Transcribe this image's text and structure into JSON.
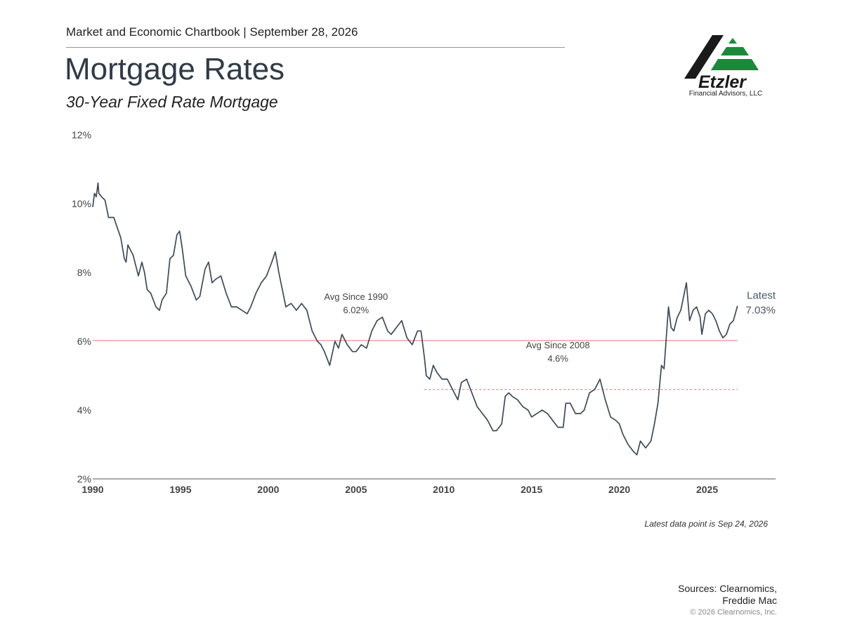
{
  "header": {
    "chartbook": "Market and Economic Chartbook | September 28, 2026"
  },
  "logo": {
    "name": "Etzler",
    "tagline": "Financial Advisors, LLC",
    "colors": {
      "dark": "#1a1a1a",
      "green": "#1a8a3a"
    }
  },
  "footer": {
    "latest_note": "Latest data point is Sep 24, 2026",
    "sources_line1": "Sources: Clearnomics,",
    "sources_line2": "Freddie Mac",
    "copyright": "© 2026 Clearnomics, Inc."
  },
  "chart_data": {
    "type": "line",
    "title": "Mortgage Rates",
    "subtitle": "30-Year Fixed Rate Mortgage",
    "xlim": [
      1990,
      2028.9
    ],
    "ylim": [
      2,
      12
    ],
    "y_ticks": [
      2,
      4,
      6,
      8,
      10,
      12
    ],
    "y_tick_labels": [
      "2%",
      "4%",
      "6%",
      "8%",
      "10%",
      "12%"
    ],
    "x_ticks": [
      1990,
      1995,
      2000,
      2005,
      2010,
      2015,
      2020,
      2025
    ],
    "x_tick_labels": [
      "1990",
      "1995",
      "2000",
      "2005",
      "2010",
      "2015",
      "2020",
      "2025"
    ],
    "grid": false,
    "colors": {
      "line": "#3d4a57",
      "avg": "#d9908f",
      "axis": "#555555",
      "text": "#444444"
    },
    "series": [
      {
        "x": [
          1990.0,
          1990.1,
          1990.2,
          1990.3,
          1990.35,
          1990.5,
          1990.7,
          1990.9,
          1991.0,
          1991.2,
          1991.4,
          1991.6,
          1991.8,
          1991.9,
          1992.0,
          1992.3,
          1992.6,
          1992.8,
          1992.95,
          1993.1,
          1993.3,
          1993.6,
          1993.8,
          1993.95,
          1994.2,
          1994.4,
          1994.6,
          1994.8,
          1994.95,
          1995.1,
          1995.3,
          1995.6,
          1995.9,
          1996.1,
          1996.4,
          1996.6,
          1996.8,
          1997.0,
          1997.3,
          1997.6,
          1997.9,
          1998.2,
          1998.5,
          1998.8,
          1999.0,
          1999.3,
          1999.6,
          1999.9,
          2000.2,
          2000.4,
          2000.6,
          2000.8,
          2001.0,
          2001.3,
          2001.6,
          2001.9,
          2002.2,
          2002.5,
          2002.8,
          2003.0,
          2003.2,
          2003.5,
          2003.8,
          2004.0,
          2004.2,
          2004.5,
          2004.8,
          2005.0,
          2005.3,
          2005.6,
          2005.9,
          2006.2,
          2006.5,
          2006.8,
          2007.0,
          2007.3,
          2007.6,
          2007.9,
          2008.2,
          2008.5,
          2008.7,
          2008.9,
          2009.0,
          2009.2,
          2009.4,
          2009.6,
          2009.9,
          2010.2,
          2010.5,
          2010.8,
          2011.0,
          2011.3,
          2011.6,
          2011.9,
          2012.2,
          2012.5,
          2012.8,
          2013.0,
          2013.3,
          2013.5,
          2013.7,
          2013.9,
          2014.2,
          2014.5,
          2014.8,
          2015.0,
          2015.3,
          2015.6,
          2015.9,
          2016.2,
          2016.5,
          2016.8,
          2016.95,
          2017.2,
          2017.5,
          2017.8,
          2018.0,
          2018.3,
          2018.6,
          2018.9,
          2019.2,
          2019.5,
          2019.8,
          2020.0,
          2020.2,
          2020.5,
          2020.8,
          2021.0,
          2021.2,
          2021.5,
          2021.8,
          2022.0,
          2022.2,
          2022.4,
          2022.55,
          2022.7,
          2022.8,
          2022.95,
          2023.1,
          2023.3,
          2023.5,
          2023.7,
          2023.82,
          2024.0,
          2024.2,
          2024.4,
          2024.6,
          2024.7,
          2024.9,
          2025.1,
          2025.3,
          2025.5,
          2025.7,
          2025.9,
          2026.1,
          2026.3,
          2026.5,
          2026.73
        ],
        "values": [
          9.9,
          10.3,
          10.2,
          10.6,
          10.3,
          10.2,
          10.1,
          9.6,
          9.6,
          9.6,
          9.3,
          9.0,
          8.4,
          8.3,
          8.8,
          8.5,
          7.9,
          8.3,
          8.0,
          7.5,
          7.4,
          7.0,
          6.9,
          7.2,
          7.4,
          8.4,
          8.5,
          9.1,
          9.2,
          8.7,
          7.9,
          7.6,
          7.2,
          7.3,
          8.1,
          8.3,
          7.7,
          7.8,
          7.9,
          7.4,
          7.0,
          7.0,
          6.9,
          6.8,
          7.0,
          7.4,
          7.7,
          7.9,
          8.3,
          8.6,
          8.0,
          7.5,
          7.0,
          7.1,
          6.9,
          7.1,
          6.9,
          6.3,
          6.0,
          5.9,
          5.7,
          5.3,
          6.0,
          5.8,
          6.2,
          5.9,
          5.7,
          5.7,
          5.9,
          5.8,
          6.3,
          6.6,
          6.7,
          6.3,
          6.2,
          6.4,
          6.6,
          6.1,
          5.9,
          6.3,
          6.3,
          5.5,
          5.0,
          4.9,
          5.3,
          5.1,
          4.9,
          4.9,
          4.6,
          4.3,
          4.8,
          4.9,
          4.5,
          4.1,
          3.9,
          3.7,
          3.4,
          3.4,
          3.6,
          4.4,
          4.5,
          4.4,
          4.3,
          4.1,
          4.0,
          3.8,
          3.9,
          4.0,
          3.9,
          3.7,
          3.5,
          3.5,
          4.2,
          4.2,
          3.9,
          3.9,
          4.0,
          4.5,
          4.6,
          4.9,
          4.3,
          3.8,
          3.7,
          3.6,
          3.3,
          3.0,
          2.8,
          2.7,
          3.1,
          2.9,
          3.1,
          3.6,
          4.2,
          5.3,
          5.2,
          6.3,
          7.0,
          6.4,
          6.3,
          6.7,
          6.9,
          7.4,
          7.7,
          6.6,
          6.9,
          7.0,
          6.7,
          6.2,
          6.8,
          6.9,
          6.8,
          6.6,
          6.3,
          6.1,
          6.2,
          6.5,
          6.6,
          7.03
        ]
      }
    ],
    "averages": [
      {
        "label_line1": "Avg Since 1990",
        "label_line2": "6.02%",
        "value": 6.02,
        "from": 1990,
        "to": 2026.73,
        "style": "solid"
      },
      {
        "label_line1": "Avg Since 2008",
        "label_line2": "4.6%",
        "value": 4.6,
        "from": 2008.9,
        "to": 2026.73,
        "style": "dashed"
      }
    ],
    "latest": {
      "label_line1": "Latest",
      "label_line2": "7.03%"
    }
  }
}
